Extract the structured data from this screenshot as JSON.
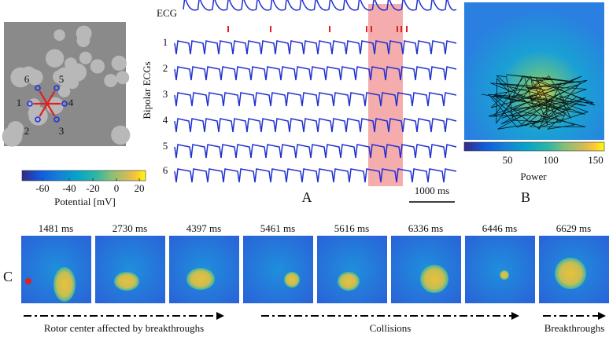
{
  "tissue": {
    "electrode_labels": [
      "1",
      "2",
      "3",
      "4",
      "5",
      "6"
    ],
    "colorbar": {
      "ticks": [
        -60,
        -40,
        -20,
        0,
        20
      ],
      "label": "Potential [mV]"
    }
  },
  "panel_a": {
    "label": "A",
    "ecg_label": "ECG",
    "bipolar_label": "Bipolar ECGs",
    "trace_labels": [
      "1",
      "2",
      "3",
      "4",
      "5",
      "6"
    ],
    "scale_bar": "1000 ms"
  },
  "panel_b": {
    "label": "B",
    "colorbar": {
      "ticks": [
        50,
        100,
        150
      ],
      "label": "Power"
    }
  },
  "panel_c": {
    "label": "C",
    "frames": [
      "1481 ms",
      "2730 ms",
      "4397 ms",
      "5461 ms",
      "5616 ms",
      "6336 ms",
      "6446 ms",
      "6629 ms"
    ],
    "phases": [
      "Rotor center affected by breakthroughs",
      "Collisions",
      "Breakthroughs"
    ]
  }
}
